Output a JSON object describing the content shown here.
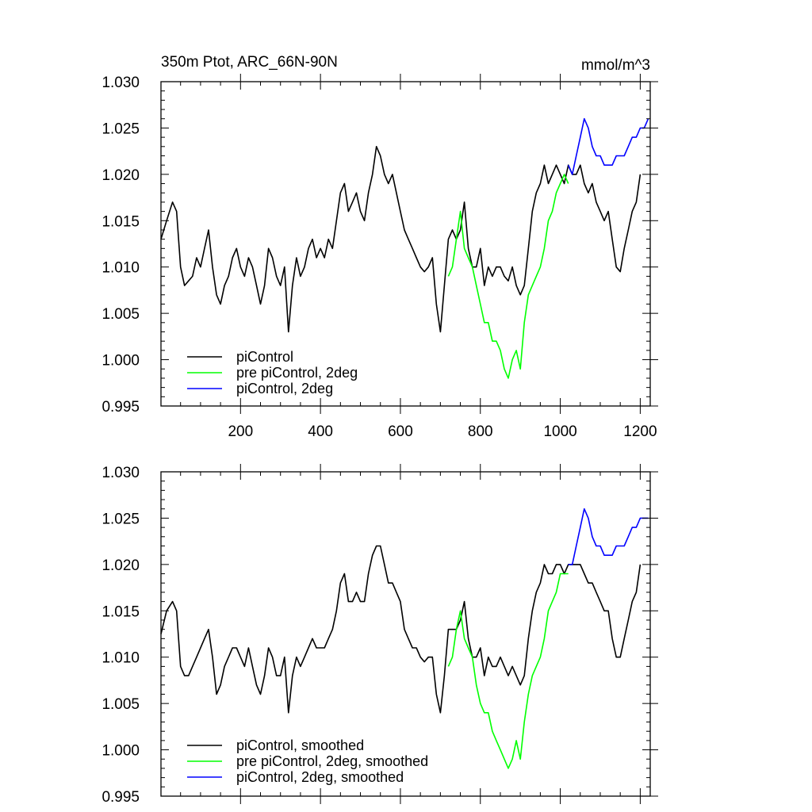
{
  "chart_data": [
    {
      "type": "line",
      "title": "350m Ptot, ARC_66N-90N",
      "units": "mmol/m^3",
      "xlabel": "",
      "ylabel": "",
      "xlim": [
        1,
        1225
      ],
      "ylim": [
        0.995,
        1.03
      ],
      "grid": false,
      "legend_position": "bottom-left",
      "x_ticks": [
        200,
        400,
        600,
        800,
        1000,
        1200
      ],
      "x_tick_labels": [
        "200",
        "400",
        "600",
        "800",
        "1000",
        "1200"
      ],
      "y_ticks": [
        0.995,
        1.0,
        1.005,
        1.01,
        1.015,
        1.02,
        1.025,
        1.03
      ],
      "y_tick_labels": [
        "0.995",
        "1.000",
        "1.005",
        "1.010",
        "1.015",
        "1.020",
        "1.025",
        "1.030"
      ],
      "series": [
        {
          "name": "piControl",
          "color": "#000000",
          "x": [
            1,
            15,
            30,
            40,
            50,
            60,
            70,
            80,
            90,
            100,
            110,
            120,
            130,
            140,
            150,
            160,
            170,
            180,
            190,
            200,
            210,
            220,
            230,
            240,
            250,
            260,
            270,
            280,
            290,
            300,
            310,
            320,
            330,
            340,
            350,
            360,
            370,
            380,
            390,
            400,
            410,
            420,
            430,
            440,
            450,
            460,
            470,
            480,
            490,
            500,
            510,
            520,
            530,
            540,
            550,
            560,
            570,
            580,
            590,
            600,
            610,
            620,
            630,
            640,
            650,
            660,
            670,
            680,
            690,
            700,
            710,
            720,
            730,
            740,
            750,
            760,
            770,
            780,
            790,
            800,
            810,
            820,
            830,
            840,
            850,
            860,
            870,
            880,
            890,
            900,
            910,
            920,
            930,
            940,
            950,
            960,
            970,
            980,
            990,
            1000,
            1010,
            1020,
            1030,
            1040,
            1050,
            1060,
            1070,
            1080,
            1090,
            1100,
            1110,
            1120,
            1130,
            1140,
            1150,
            1160,
            1170,
            1180,
            1190,
            1200
          ],
          "y": [
            1.013,
            1.015,
            1.017,
            1.016,
            1.01,
            1.008,
            1.0085,
            1.009,
            1.011,
            1.01,
            1.012,
            1.014,
            1.01,
            1.007,
            1.006,
            1.008,
            1.009,
            1.011,
            1.012,
            1.01,
            1.009,
            1.011,
            1.01,
            1.008,
            1.006,
            1.008,
            1.012,
            1.011,
            1.009,
            1.008,
            1.01,
            1.003,
            1.008,
            1.011,
            1.009,
            1.01,
            1.012,
            1.013,
            1.011,
            1.012,
            1.011,
            1.013,
            1.012,
            1.015,
            1.018,
            1.019,
            1.016,
            1.017,
            1.018,
            1.016,
            1.015,
            1.018,
            1.02,
            1.023,
            1.022,
            1.02,
            1.019,
            1.02,
            1.018,
            1.016,
            1.014,
            1.013,
            1.012,
            1.011,
            1.01,
            1.0095,
            1.01,
            1.011,
            1.006,
            1.003,
            1.008,
            1.013,
            1.014,
            1.013,
            1.014,
            1.017,
            1.012,
            1.01,
            1.01,
            1.012,
            1.008,
            1.01,
            1.009,
            1.01,
            1.01,
            1.009,
            1.0085,
            1.01,
            1.008,
            1.007,
            1.008,
            1.012,
            1.016,
            1.018,
            1.019,
            1.021,
            1.019,
            1.02,
            1.021,
            1.02,
            1.019,
            1.021,
            1.02,
            1.02,
            1.021,
            1.019,
            1.018,
            1.019,
            1.017,
            1.016,
            1.015,
            1.016,
            1.013,
            1.01,
            1.0095,
            1.012,
            1.014,
            1.016,
            1.017,
            1.02
          ]
        },
        {
          "name": "pre piControl, 2deg",
          "color": "#00ff00",
          "x": [
            720,
            730,
            740,
            750,
            760,
            770,
            780,
            790,
            800,
            810,
            820,
            830,
            840,
            850,
            860,
            870,
            880,
            890,
            900,
            910,
            920,
            930,
            940,
            950,
            960,
            970,
            980,
            990,
            1000,
            1010,
            1020
          ],
          "y": [
            1.009,
            1.01,
            1.013,
            1.016,
            1.012,
            1.011,
            1.01,
            1.008,
            1.006,
            1.004,
            1.004,
            1.002,
            1.002,
            1.001,
            0.999,
            0.998,
            1.0,
            1.001,
            0.999,
            1.004,
            1.007,
            1.008,
            1.009,
            1.01,
            1.012,
            1.015,
            1.016,
            1.018,
            1.019,
            1.02,
            1.019
          ]
        },
        {
          "name": "piControl, 2deg",
          "color": "#0000ff",
          "x": [
            1020,
            1030,
            1040,
            1050,
            1060,
            1070,
            1080,
            1090,
            1100,
            1110,
            1120,
            1130,
            1140,
            1150,
            1160,
            1170,
            1180,
            1190,
            1200,
            1210,
            1220
          ],
          "y": [
            1.021,
            1.02,
            1.022,
            1.024,
            1.026,
            1.025,
            1.023,
            1.022,
            1.022,
            1.021,
            1.021,
            1.021,
            1.022,
            1.022,
            1.022,
            1.023,
            1.024,
            1.024,
            1.025,
            1.025,
            1.026
          ]
        }
      ]
    },
    {
      "type": "line",
      "title": "",
      "xlabel": "",
      "ylabel": "",
      "xlim": [
        1,
        1225
      ],
      "ylim": [
        0.995,
        1.03
      ],
      "grid": false,
      "legend_position": "bottom-left",
      "x_ticks": [
        200,
        400,
        600,
        800,
        1000,
        1200
      ],
      "x_tick_labels": [],
      "y_ticks": [
        0.995,
        1.0,
        1.005,
        1.01,
        1.015,
        1.02,
        1.025,
        1.03
      ],
      "y_tick_labels": [
        "0.995",
        "1.000",
        "1.005",
        "1.010",
        "1.015",
        "1.020",
        "1.025",
        "1.030"
      ],
      "series": [
        {
          "name": "piControl, smoothed",
          "color": "#000000",
          "x": [
            1,
            15,
            30,
            40,
            50,
            60,
            70,
            80,
            90,
            100,
            110,
            120,
            130,
            140,
            150,
            160,
            170,
            180,
            190,
            200,
            210,
            220,
            230,
            240,
            250,
            260,
            270,
            280,
            290,
            300,
            310,
            320,
            330,
            340,
            350,
            360,
            370,
            380,
            390,
            400,
            410,
            420,
            430,
            440,
            450,
            460,
            470,
            480,
            490,
            500,
            510,
            520,
            530,
            540,
            550,
            560,
            570,
            580,
            590,
            600,
            610,
            620,
            630,
            640,
            650,
            660,
            670,
            680,
            690,
            700,
            710,
            720,
            730,
            740,
            750,
            760,
            770,
            780,
            790,
            800,
            810,
            820,
            830,
            840,
            850,
            860,
            870,
            880,
            890,
            900,
            910,
            920,
            930,
            940,
            950,
            960,
            970,
            980,
            990,
            1000,
            1010,
            1020,
            1030,
            1040,
            1050,
            1060,
            1070,
            1080,
            1090,
            1100,
            1110,
            1120,
            1130,
            1140,
            1150,
            1160,
            1170,
            1180,
            1190,
            1200
          ],
          "y": [
            1.0125,
            1.015,
            1.016,
            1.015,
            1.009,
            1.008,
            1.008,
            1.009,
            1.01,
            1.011,
            1.012,
            1.013,
            1.01,
            1.006,
            1.007,
            1.009,
            1.01,
            1.011,
            1.011,
            1.01,
            1.009,
            1.011,
            1.009,
            1.007,
            1.006,
            1.008,
            1.011,
            1.01,
            1.008,
            1.008,
            1.01,
            1.004,
            1.008,
            1.01,
            1.009,
            1.01,
            1.011,
            1.012,
            1.011,
            1.011,
            1.011,
            1.012,
            1.013,
            1.015,
            1.018,
            1.019,
            1.016,
            1.016,
            1.017,
            1.016,
            1.016,
            1.019,
            1.021,
            1.022,
            1.022,
            1.02,
            1.018,
            1.018,
            1.017,
            1.016,
            1.013,
            1.012,
            1.011,
            1.011,
            1.01,
            1.0095,
            1.01,
            1.01,
            1.006,
            1.004,
            1.008,
            1.013,
            1.013,
            1.013,
            1.014,
            1.016,
            1.012,
            1.01,
            1.01,
            1.011,
            1.008,
            1.01,
            1.009,
            1.009,
            1.01,
            1.009,
            1.008,
            1.009,
            1.008,
            1.007,
            1.008,
            1.012,
            1.015,
            1.017,
            1.018,
            1.02,
            1.019,
            1.019,
            1.02,
            1.02,
            1.019,
            1.02,
            1.02,
            1.02,
            1.02,
            1.019,
            1.018,
            1.018,
            1.017,
            1.016,
            1.015,
            1.015,
            1.012,
            1.01,
            1.01,
            1.012,
            1.014,
            1.016,
            1.017,
            1.02
          ]
        },
        {
          "name": "pre piControl, 2deg, smoothed",
          "color": "#00ff00",
          "x": [
            720,
            730,
            740,
            750,
            760,
            770,
            780,
            790,
            800,
            810,
            820,
            830,
            840,
            850,
            860,
            870,
            880,
            890,
            900,
            910,
            920,
            930,
            940,
            950,
            960,
            970,
            980,
            990,
            1000,
            1010,
            1020
          ],
          "y": [
            1.009,
            1.01,
            1.013,
            1.015,
            1.012,
            1.011,
            1.01,
            1.007,
            1.005,
            1.004,
            1.004,
            1.002,
            1.001,
            1.0,
            0.999,
            0.998,
            0.999,
            1.001,
            0.999,
            1.003,
            1.006,
            1.008,
            1.009,
            1.01,
            1.012,
            1.015,
            1.016,
            1.017,
            1.019,
            1.019,
            1.019
          ]
        },
        {
          "name": "piControl, 2deg, smoothed",
          "color": "#0000ff",
          "x": [
            1020,
            1030,
            1040,
            1050,
            1060,
            1070,
            1080,
            1090,
            1100,
            1110,
            1120,
            1130,
            1140,
            1150,
            1160,
            1170,
            1180,
            1190,
            1200,
            1210,
            1220
          ],
          "y": [
            1.02,
            1.02,
            1.022,
            1.024,
            1.026,
            1.025,
            1.023,
            1.022,
            1.022,
            1.021,
            1.021,
            1.021,
            1.022,
            1.022,
            1.022,
            1.023,
            1.024,
            1.024,
            1.025,
            1.025,
            1.025
          ]
        }
      ]
    }
  ]
}
